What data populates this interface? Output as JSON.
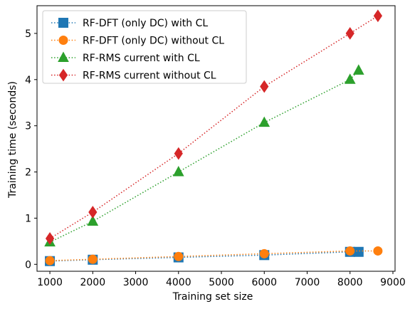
{
  "chart_data": {
    "type": "line",
    "xlabel": "Training set size",
    "ylabel": "Training time (seconds)",
    "xlim": [
      700,
      9050
    ],
    "ylim": [
      -0.15,
      5.6
    ],
    "xticks": [
      1000,
      2000,
      3000,
      4000,
      5000,
      6000,
      7000,
      8000,
      9000
    ],
    "yticks": [
      0,
      1,
      2,
      3,
      4,
      5
    ],
    "grid": false,
    "legend_position": "top-left",
    "line_style": "dotted",
    "series": [
      {
        "name": "RF-DFT (only DC) with CL",
        "color": "#1f77b4",
        "marker": "square",
        "x": [
          1000,
          2000,
          4000,
          6000,
          8000,
          8200
        ],
        "y": [
          0.07,
          0.1,
          0.15,
          0.2,
          0.27,
          0.27
        ]
      },
      {
        "name": "RF-DFT (only DC) without CL",
        "color": "#ff7f0e",
        "marker": "circle",
        "x": [
          1000,
          2000,
          4000,
          6000,
          8000,
          8650
        ],
        "y": [
          0.08,
          0.11,
          0.17,
          0.23,
          0.29,
          0.29
        ]
      },
      {
        "name": "RF-RMS current with CL",
        "color": "#2ca02c",
        "marker": "triangle",
        "x": [
          1000,
          2000,
          4000,
          6000,
          8000,
          8200
        ],
        "y": [
          0.48,
          0.93,
          2.0,
          3.07,
          4.0,
          4.2
        ]
      },
      {
        "name": "RF-RMS current without CL",
        "color": "#d62728",
        "marker": "diamond",
        "x": [
          1000,
          2000,
          4000,
          6000,
          8000,
          8650
        ],
        "y": [
          0.56,
          1.13,
          2.4,
          3.85,
          5.0,
          5.38
        ]
      }
    ]
  }
}
